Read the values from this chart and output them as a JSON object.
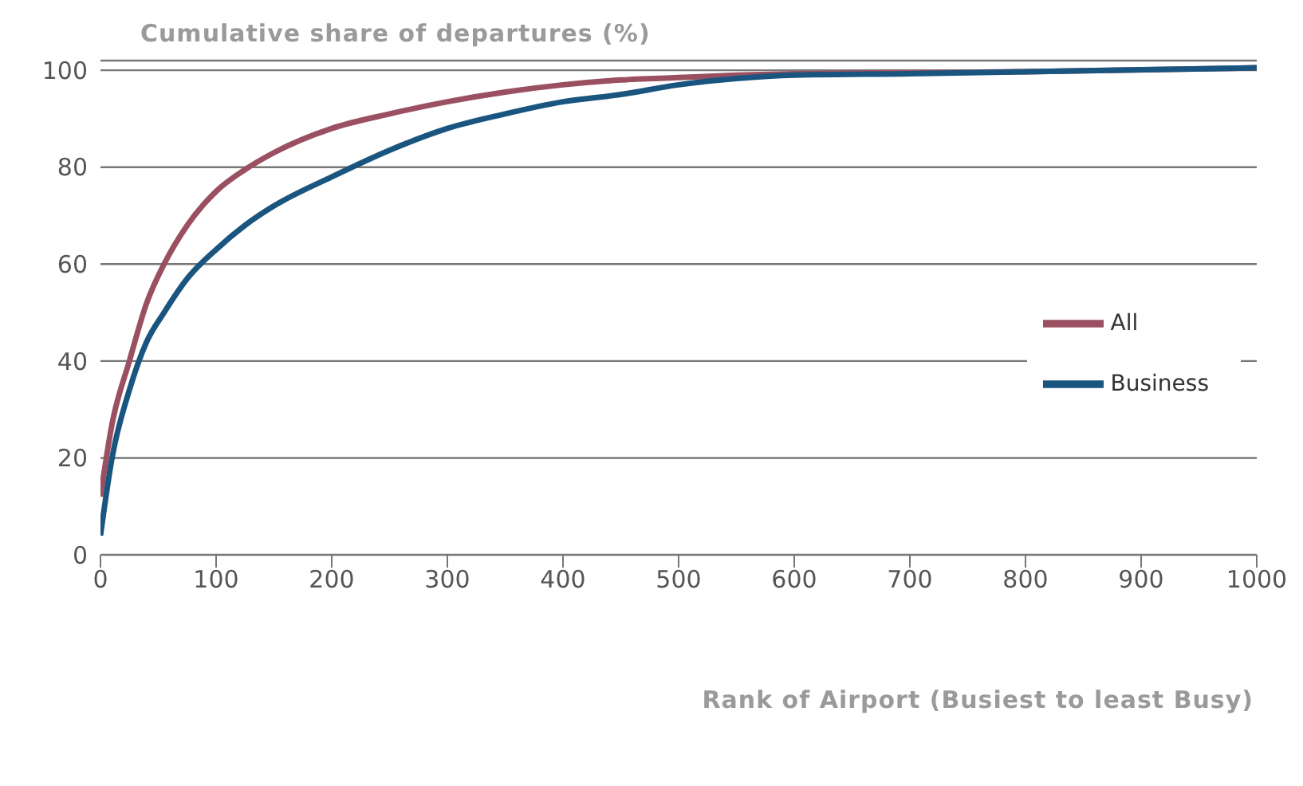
{
  "chart_data": {
    "type": "line",
    "title": "Cumulative share of departures (%)",
    "xlabel": "Rank of Airport (Busiest to least Busy)",
    "x": [
      0,
      10,
      25,
      40,
      55,
      75,
      100,
      125,
      150,
      200,
      250,
      300,
      350,
      400,
      450,
      500,
      550,
      600,
      700,
      800,
      1000
    ],
    "series": [
      {
        "name": "All",
        "color": "#9a5060",
        "values": [
          12,
          27,
          40,
          52,
          60,
          68,
          75,
          79.5,
          83,
          88,
          91,
          93.5,
          95.5,
          97,
          98,
          98.5,
          99,
          99.3,
          99.5,
          99.7,
          100.5
        ]
      },
      {
        "name": "Business",
        "color": "#1a5580",
        "values": [
          4,
          20,
          34,
          44,
          50,
          57,
          63,
          68,
          72,
          78,
          83.5,
          88,
          91,
          93.5,
          95,
          97,
          98.3,
          99,
          99.3,
          99.7,
          100.5
        ]
      }
    ],
    "xlim": [
      0,
      1000
    ],
    "xticks": [
      0,
      100,
      200,
      300,
      400,
      500,
      600,
      700,
      800,
      900,
      1000
    ],
    "ylim": [
      0,
      102
    ],
    "yticks": [
      0,
      20,
      40,
      60,
      80,
      100
    ],
    "grid": "y",
    "legend": "right",
    "marker": "none",
    "line_style": "solid"
  }
}
